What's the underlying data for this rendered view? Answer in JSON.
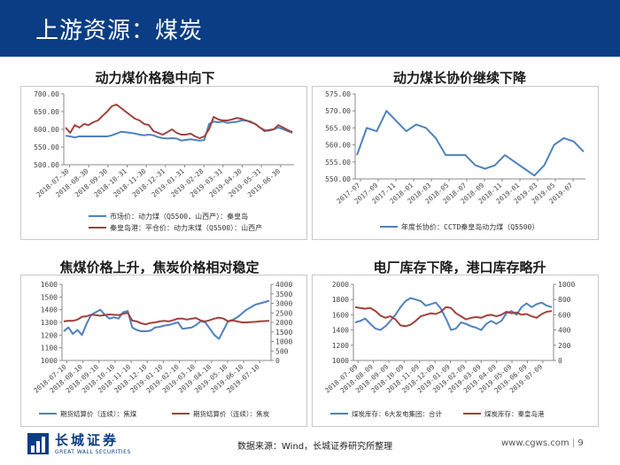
{
  "header": {
    "title": "上游资源：煤炭"
  },
  "footer": {
    "source": "数据来源：Wind，长城证券研究所整理",
    "url": "www.cgws.com",
    "page": "9"
  },
  "logo": {
    "name_cn": "长城证券",
    "name_en": "GREAT WALL SECURITIES",
    "brand_color": "#0b3d84"
  },
  "colors": {
    "blue": "#4f81bd",
    "red": "#a0413d"
  },
  "chart_data": [
    {
      "id": "c1",
      "type": "line",
      "title": "动力煤价格稳中向下",
      "x_ticks": [
        "2018-07-30",
        "2018-08-30",
        "2018-09-30",
        "2018-10-31",
        "2018-11-30",
        "2018-12-31",
        "2019-01-31",
        "2019-02-28",
        "2019-03-31",
        "2019-04-30",
        "2019-05-31",
        "2019-06-30"
      ],
      "ylim": [
        500,
        700
      ],
      "y_ticks": [
        "500.00",
        "550.00",
        "600.00",
        "650.00",
        "700.00"
      ],
      "grid": false,
      "legend_position": "bottom",
      "series": [
        {
          "name": "市场价：动力煤（Q5500，山西产）：秦皇岛",
          "color": "#4f81bd",
          "values": [
            582,
            580,
            577,
            580,
            580,
            580,
            580,
            580,
            580,
            580,
            583,
            588,
            593,
            592,
            590,
            588,
            585,
            583,
            585,
            583,
            578,
            575,
            574,
            575,
            574,
            568,
            570,
            572,
            570,
            568,
            570,
            615,
            622,
            620,
            622,
            618,
            620,
            621,
            625,
            625,
            622,
            615,
            605,
            598,
            596,
            600,
            605,
            600,
            595,
            590
          ]
        },
        {
          "name": "秦皇岛港：平仓价：动力末煤（Q5500）：山西产",
          "color": "#a0413d",
          "values": [
            605,
            590,
            612,
            605,
            615,
            612,
            620,
            625,
            638,
            650,
            665,
            670,
            660,
            650,
            640,
            630,
            625,
            615,
            612,
            595,
            590,
            585,
            592,
            600,
            590,
            585,
            585,
            588,
            580,
            575,
            580,
            600,
            635,
            628,
            625,
            625,
            628,
            632,
            630,
            625,
            620,
            615,
            605,
            595,
            598,
            600,
            612,
            605,
            598,
            592
          ]
        }
      ]
    },
    {
      "id": "c2",
      "type": "line",
      "title": "动力煤长协价继续下降",
      "x_ticks": [
        "2017-07",
        "2017-09",
        "2017-11",
        "2018-01",
        "2018-03",
        "2018-05",
        "2018-07",
        "2018-09",
        "2018-11",
        "2019-01",
        "2019-03",
        "2019-05",
        "2019-07"
      ],
      "ylim": [
        550,
        575
      ],
      "y_ticks": [
        "550.00",
        "555.00",
        "560.00",
        "565.00",
        "570.00",
        "575.00"
      ],
      "grid": false,
      "legend_position": "bottom",
      "series": [
        {
          "name": "年度长协价：CCTD秦皇岛动力煤（Q5500）",
          "color": "#4f81bd",
          "values": [
            557,
            565,
            564,
            570,
            567,
            564,
            566,
            565,
            562,
            557,
            557,
            557,
            554,
            553,
            554,
            557,
            555,
            553,
            551,
            554,
            560,
            562,
            561,
            558
          ]
        }
      ]
    },
    {
      "id": "c3",
      "type": "line",
      "title": "焦煤价格上升，焦炭价格相对稳定",
      "x_ticks": [
        "2018-07-10",
        "2018-08-10",
        "2018-09-10",
        "2018-10-10",
        "2018-11-10",
        "2018-12-10",
        "2019-01-10",
        "2019-02-10",
        "2019-03-10",
        "2019-04-10",
        "2019-05-10",
        "2019-06-10",
        "2019-07-10"
      ],
      "ylim_left": [
        1000,
        1600
      ],
      "y_ticks_left": [
        "1000",
        "1100",
        "1200",
        "1300",
        "1400",
        "1500",
        "1600"
      ],
      "ylim_right": [
        0,
        4000
      ],
      "y_ticks_right": [
        "0",
        "500",
        "1000",
        "1500",
        "2000",
        "2500",
        "3000",
        "3500",
        "4000"
      ],
      "grid": false,
      "legend_position": "bottom",
      "series": [
        {
          "name": "期货结算价（连续）：焦煤",
          "axis": "left",
          "color": "#4f81bd",
          "values": [
            1230,
            1260,
            1210,
            1240,
            1200,
            1290,
            1360,
            1380,
            1400,
            1360,
            1330,
            1340,
            1330,
            1380,
            1390,
            1260,
            1240,
            1230,
            1230,
            1235,
            1260,
            1265,
            1275,
            1280,
            1290,
            1300,
            1250,
            1255,
            1260,
            1280,
            1310,
            1300,
            1250,
            1200,
            1170,
            1240,
            1310,
            1320,
            1340,
            1370,
            1400,
            1420,
            1440,
            1450,
            1460,
            1470
          ]
        },
        {
          "name": "期货结算价（连续）：焦炭",
          "axis": "right",
          "color": "#a0413d",
          "values": [
            2050,
            2090,
            2080,
            2150,
            2300,
            2320,
            2400,
            2380,
            2350,
            2390,
            2420,
            2400,
            2380,
            2450,
            2500,
            2100,
            2050,
            1950,
            1900,
            1970,
            2000,
            2050,
            2080,
            2050,
            2120,
            2200,
            2200,
            2150,
            2200,
            2230,
            2100,
            2050,
            2120,
            2200,
            2250,
            2200,
            2050,
            2100,
            2050,
            2000,
            2000,
            2020,
            2030,
            2060,
            2070,
            2080
          ]
        }
      ]
    },
    {
      "id": "c4",
      "type": "line",
      "title": "电厂库存下降，港口库存略升",
      "x_ticks": [
        "2018-07-09",
        "2018-08-09",
        "2018-09-09",
        "2018-10-09",
        "2018-11-09",
        "2018-12-09",
        "2019-01-09",
        "2019-02-09",
        "2019-03-09",
        "2019-04-09",
        "2019-05-09",
        "2019-06-09",
        "2019-07-09"
      ],
      "ylim_left": [
        1000,
        2000
      ],
      "y_ticks_left": [
        "1000",
        "1200",
        "1400",
        "1600",
        "1800",
        "2000"
      ],
      "ylim_right": [
        0,
        1000
      ],
      "y_ticks_right": [
        "0",
        "200",
        "400",
        "600",
        "800",
        "1000"
      ],
      "grid": false,
      "legend_position": "bottom",
      "series": [
        {
          "name": "煤炭库存：6大发电集团：合计",
          "axis": "left",
          "color": "#4f81bd",
          "values": [
            1500,
            1520,
            1550,
            1480,
            1420,
            1400,
            1450,
            1520,
            1600,
            1700,
            1780,
            1820,
            1800,
            1780,
            1720,
            1740,
            1760,
            1680,
            1550,
            1400,
            1420,
            1500,
            1480,
            1450,
            1430,
            1400,
            1480,
            1520,
            1480,
            1520,
            1620,
            1650,
            1600,
            1700,
            1750,
            1700,
            1740,
            1760,
            1720,
            1700
          ]
        },
        {
          "name": "煤炭库存：秦皇岛港",
          "axis": "right",
          "color": "#a0413d",
          "values": [
            700,
            690,
            680,
            690,
            650,
            590,
            560,
            580,
            540,
            460,
            450,
            470,
            520,
            580,
            600,
            620,
            610,
            640,
            700,
            690,
            620,
            580,
            540,
            560,
            570,
            560,
            590,
            600,
            580,
            600,
            640,
            620,
            630,
            600,
            610,
            580,
            560,
            610,
            640,
            650
          ]
        }
      ]
    }
  ]
}
